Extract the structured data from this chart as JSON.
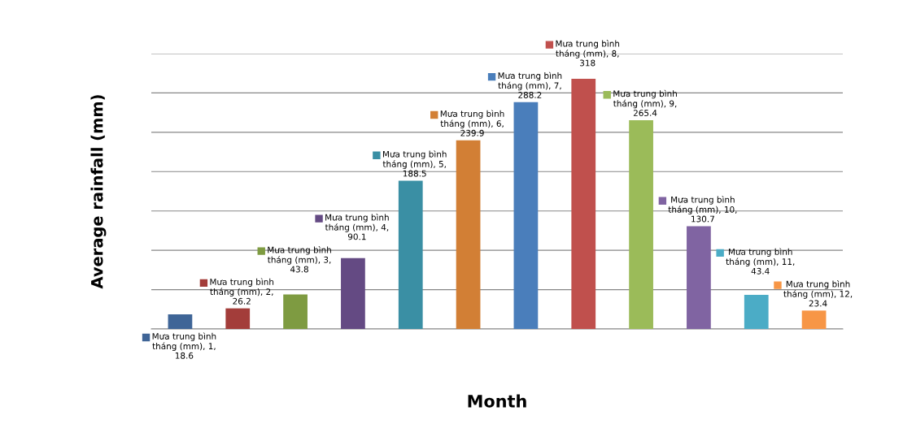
{
  "chart_data": {
    "type": "bar",
    "xlabel": "Month",
    "ylabel": "Average rainfall (mm)",
    "categories": [
      null,
      null,
      null,
      null,
      null,
      null,
      null,
      null,
      null,
      null,
      null,
      null
    ],
    "values": [
      18.6,
      26.2,
      43.8,
      90.1,
      188.5,
      239.9,
      288.2,
      318,
      265.4,
      130.7,
      43.4,
      23.4
    ],
    "colors": [
      "#3f6597",
      "#a33d3a",
      "#7e9b41",
      "#644a83",
      "#3a8fa4",
      "#d27f35",
      "#4a7ebb",
      "#c0504d",
      "#9bbb59",
      "#8064a2",
      "#4bacc6",
      "#f79646"
    ],
    "value_labels": [
      "Mưa trung bình tháng (mm), 1, 18.6",
      "Mưa trung bình tháng (mm), 2, 26.2",
      "Mưa trung bình tháng (mm), 3, 43.8",
      "Mưa trung bình tháng (mm), 4, 90.1",
      "Mưa trung bình tháng (mm), 5, 188.5",
      "Mưa trung bình tháng (mm), 6, 239.9",
      "Mưa trung bình tháng (mm), 7, 288.2",
      "Mưa trung bình tháng (mm), 8, 318",
      "Mưa trung bình tháng (mm), 9, 265.4",
      "Mưa trung bình tháng (mm), 10, 130.7",
      "Mưa trung bình tháng (mm), 11, 43.4",
      "Mưa trung bình tháng (mm), 12, 23.4"
    ],
    "ylim": [
      0,
      350
    ],
    "yticks": [
      {
        "value": 0,
        "label": null
      },
      {
        "value": 50,
        "label": null
      },
      {
        "value": 100,
        "label": null
      },
      {
        "value": 150,
        "label": null
      },
      {
        "value": 200,
        "label": null
      },
      {
        "value": 250,
        "label": null
      },
      {
        "value": 300,
        "label": null
      },
      {
        "value": 350,
        "label": null
      }
    ],
    "grid": "y",
    "tick_labels": false
  }
}
